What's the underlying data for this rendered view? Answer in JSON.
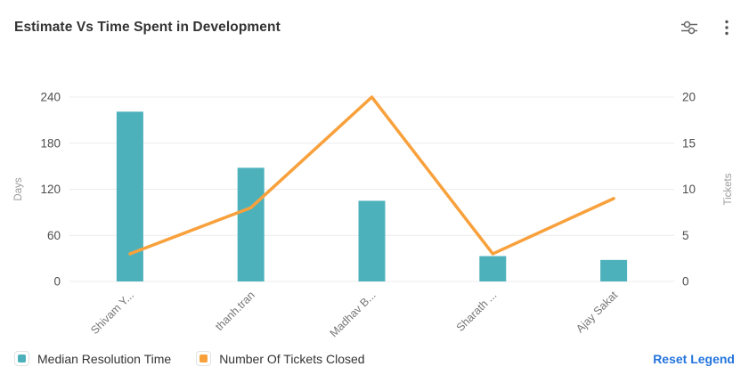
{
  "header": {
    "title": "Estimate Vs Time Spent in Development",
    "settings_icon": "chart-settings-sliders",
    "menu_icon": "kebab-menu"
  },
  "chart_data": {
    "type": "bar",
    "subtype": "combo-bar-line-dual-axis",
    "title": "Estimate Vs Time Spent in Development",
    "categories": [
      "Shivam Y...",
      "thanh.tran",
      "Madhav B...",
      "Sharath ...",
      "Ajay Sakat"
    ],
    "series": [
      {
        "name": "Median Resolution Time",
        "type": "bar",
        "axis": "left",
        "color": "#4db1bc",
        "values": [
          221,
          148,
          105,
          33,
          28
        ]
      },
      {
        "name": "Number Of Tickets Closed",
        "type": "line",
        "axis": "right",
        "color": "#f8a13c",
        "values": [
          3,
          8,
          20,
          3,
          9
        ]
      }
    ],
    "left_axis": {
      "label": "Days",
      "ticks": [
        0,
        60,
        120,
        180,
        240
      ],
      "min": 0,
      "max": 240
    },
    "right_axis": {
      "label": "Tickets",
      "ticks": [
        0,
        5,
        10,
        15,
        20
      ],
      "min": 0,
      "max": 20
    },
    "grid": true,
    "legend_position": "bottom-left",
    "colors": {
      "grid_line": "#ececec",
      "tick_label": "#4d4d4d",
      "axis_name": "#9a9a9a",
      "category_label": "#777777",
      "title": "#333333",
      "link_blue": "#2374dd"
    }
  },
  "legend": {
    "items": [
      {
        "label": "Median Resolution Time",
        "color": "#4db1bc"
      },
      {
        "label": "Number Of Tickets Closed",
        "color": "#f8a13c"
      }
    ],
    "reset_label": "Reset Legend"
  }
}
